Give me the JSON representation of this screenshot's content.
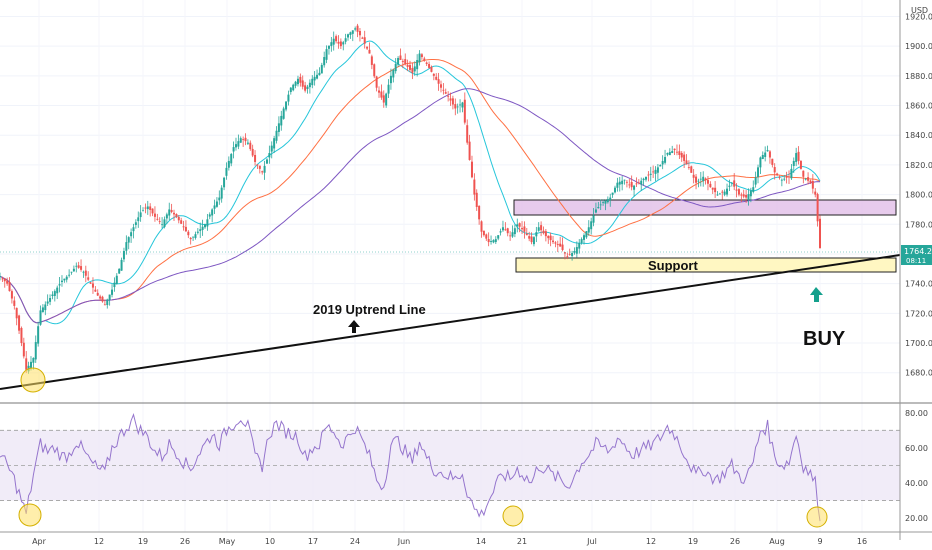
{
  "chart_data": {
    "type": "candlestick",
    "currency": "USD",
    "price_axis": {
      "ticks": [
        1680,
        1700,
        1720,
        1740,
        1760,
        1780,
        1800,
        1820,
        1840,
        1860,
        1880,
        1900,
        1920
      ],
      "ylim": [
        1665,
        1923
      ]
    },
    "rsi_axis": {
      "ticks": [
        20,
        40,
        60,
        80
      ],
      "ylim": [
        12,
        85
      ],
      "band": [
        30,
        70
      ]
    },
    "time_axis": {
      "labels": [
        "Apr",
        "12",
        "19",
        "26",
        "May",
        "10",
        "17",
        "24",
        "Jun",
        "14",
        "21",
        "Jul",
        "12",
        "19",
        "26",
        "Aug",
        "9",
        "16"
      ]
    },
    "current_price": {
      "value": "1764.21",
      "countdown": "08:11"
    },
    "annotations": {
      "uptrend_label": "2019 Uptrend Line",
      "support_label": "Support",
      "buy_label": "BUY"
    },
    "price_path": [
      [
        0,
        1745
      ],
      [
        3,
        1740
      ],
      [
        6,
        1725
      ],
      [
        9,
        1700
      ],
      [
        11,
        1682
      ],
      [
        14,
        1690
      ],
      [
        17,
        1722
      ],
      [
        20,
        1728
      ],
      [
        23,
        1735
      ],
      [
        26,
        1742
      ],
      [
        29,
        1746
      ],
      [
        32,
        1752
      ],
      [
        35,
        1748
      ],
      [
        38,
        1740
      ],
      [
        41,
        1732
      ],
      [
        44,
        1726
      ],
      [
        47,
        1736
      ],
      [
        50,
        1750
      ],
      [
        53,
        1768
      ],
      [
        56,
        1778
      ],
      [
        59,
        1788
      ],
      [
        62,
        1792
      ],
      [
        65,
        1785
      ],
      [
        68,
        1780
      ],
      [
        71,
        1790
      ],
      [
        74,
        1785
      ],
      [
        77,
        1778
      ],
      [
        80,
        1770
      ],
      [
        83,
        1775
      ],
      [
        86,
        1780
      ],
      [
        89,
        1790
      ],
      [
        92,
        1798
      ],
      [
        95,
        1818
      ],
      [
        98,
        1832
      ],
      [
        101,
        1838
      ],
      [
        104,
        1835
      ],
      [
        107,
        1822
      ],
      [
        110,
        1815
      ],
      [
        113,
        1828
      ],
      [
        116,
        1843
      ],
      [
        119,
        1858
      ],
      [
        122,
        1872
      ],
      [
        125,
        1878
      ],
      [
        128,
        1870
      ],
      [
        131,
        1878
      ],
      [
        134,
        1882
      ],
      [
        137,
        1898
      ],
      [
        140,
        1905
      ],
      [
        143,
        1900
      ],
      [
        146,
        1908
      ],
      [
        149,
        1912
      ],
      [
        152,
        1905
      ],
      [
        155,
        1895
      ],
      [
        158,
        1872
      ],
      [
        161,
        1862
      ],
      [
        164,
        1880
      ],
      [
        167,
        1892
      ],
      [
        170,
        1888
      ],
      [
        173,
        1882
      ],
      [
        176,
        1895
      ],
      [
        179,
        1888
      ],
      [
        182,
        1880
      ],
      [
        185,
        1872
      ],
      [
        188,
        1866
      ],
      [
        191,
        1858
      ],
      [
        194,
        1862
      ],
      [
        196,
        1835
      ],
      [
        199,
        1800
      ],
      [
        202,
        1775
      ],
      [
        205,
        1768
      ],
      [
        208,
        1770
      ],
      [
        211,
        1778
      ],
      [
        214,
        1772
      ],
      [
        217,
        1780
      ],
      [
        220,
        1775
      ],
      [
        223,
        1768
      ],
      [
        226,
        1778
      ],
      [
        229,
        1772
      ],
      [
        232,
        1768
      ],
      [
        235,
        1765
      ],
      [
        238,
        1758
      ],
      [
        241,
        1762
      ],
      [
        244,
        1770
      ],
      [
        247,
        1778
      ],
      [
        250,
        1790
      ],
      [
        253,
        1795
      ],
      [
        256,
        1798
      ],
      [
        259,
        1808
      ],
      [
        262,
        1810
      ],
      [
        265,
        1805
      ],
      [
        268,
        1808
      ],
      [
        271,
        1812
      ],
      [
        274,
        1815
      ],
      [
        277,
        1820
      ],
      [
        280,
        1828
      ],
      [
        283,
        1830
      ],
      [
        286,
        1825
      ],
      [
        289,
        1818
      ],
      [
        292,
        1808
      ],
      [
        295,
        1812
      ],
      [
        298,
        1805
      ],
      [
        301,
        1800
      ],
      [
        304,
        1802
      ],
      [
        307,
        1808
      ],
      [
        310,
        1800
      ],
      [
        313,
        1798
      ],
      [
        316,
        1805
      ],
      [
        319,
        1825
      ],
      [
        322,
        1830
      ],
      [
        325,
        1815
      ],
      [
        328,
        1810
      ],
      [
        331,
        1812
      ],
      [
        334,
        1828
      ],
      [
        337,
        1812
      ],
      [
        340,
        1808
      ],
      [
        342,
        1800
      ],
      [
        344,
        1764
      ]
    ],
    "rsi_path": [
      [
        0,
        55
      ],
      [
        3,
        50
      ],
      [
        6,
        42
      ],
      [
        9,
        30
      ],
      [
        11,
        22
      ],
      [
        14,
        45
      ],
      [
        17,
        62
      ],
      [
        20,
        58
      ],
      [
        23,
        60
      ],
      [
        26,
        55
      ],
      [
        29,
        56
      ],
      [
        32,
        64
      ],
      [
        35,
        58
      ],
      [
        38,
        52
      ],
      [
        41,
        48
      ],
      [
        44,
        46
      ],
      [
        47,
        60
      ],
      [
        50,
        66
      ],
      [
        53,
        72
      ],
      [
        56,
        76
      ],
      [
        59,
        70
      ],
      [
        62,
        66
      ],
      [
        65,
        58
      ],
      [
        68,
        55
      ],
      [
        71,
        62
      ],
      [
        74,
        58
      ],
      [
        77,
        52
      ],
      [
        80,
        48
      ],
      [
        83,
        56
      ],
      [
        86,
        62
      ],
      [
        89,
        68
      ],
      [
        92,
        62
      ],
      [
        95,
        70
      ],
      [
        98,
        74
      ],
      [
        101,
        78
      ],
      [
        104,
        72
      ],
      [
        107,
        55
      ],
      [
        110,
        50
      ],
      [
        113,
        68
      ],
      [
        116,
        74
      ],
      [
        119,
        70
      ],
      [
        122,
        68
      ],
      [
        125,
        66
      ],
      [
        128,
        55
      ],
      [
        131,
        60
      ],
      [
        134,
        62
      ],
      [
        137,
        72
      ],
      [
        140,
        70
      ],
      [
        143,
        62
      ],
      [
        146,
        66
      ],
      [
        149,
        72
      ],
      [
        152,
        64
      ],
      [
        155,
        55
      ],
      [
        158,
        42
      ],
      [
        161,
        38
      ],
      [
        164,
        62
      ],
      [
        167,
        64
      ],
      [
        170,
        58
      ],
      [
        173,
        52
      ],
      [
        176,
        64
      ],
      [
        179,
        54
      ],
      [
        182,
        48
      ],
      [
        185,
        46
      ],
      [
        188,
        44
      ],
      [
        191,
        42
      ],
      [
        194,
        46
      ],
      [
        196,
        35
      ],
      [
        199,
        25
      ],
      [
        202,
        22
      ],
      [
        205,
        30
      ],
      [
        208,
        38
      ],
      [
        211,
        45
      ],
      [
        214,
        42
      ],
      [
        217,
        48
      ],
      [
        220,
        44
      ],
      [
        223,
        40
      ],
      [
        226,
        50
      ],
      [
        229,
        48
      ],
      [
        232,
        44
      ],
      [
        235,
        42
      ],
      [
        238,
        38
      ],
      [
        241,
        44
      ],
      [
        244,
        52
      ],
      [
        247,
        56
      ],
      [
        250,
        62
      ],
      [
        253,
        60
      ],
      [
        256,
        58
      ],
      [
        259,
        66
      ],
      [
        262,
        62
      ],
      [
        265,
        56
      ],
      [
        268,
        58
      ],
      [
        271,
        60
      ],
      [
        274,
        62
      ],
      [
        277,
        66
      ],
      [
        280,
        72
      ],
      [
        283,
        68
      ],
      [
        286,
        60
      ],
      [
        289,
        52
      ],
      [
        292,
        44
      ],
      [
        295,
        48
      ],
      [
        298,
        44
      ],
      [
        301,
        42
      ],
      [
        304,
        46
      ],
      [
        307,
        50
      ],
      [
        310,
        44
      ],
      [
        313,
        42
      ],
      [
        316,
        52
      ],
      [
        319,
        70
      ],
      [
        322,
        72
      ],
      [
        325,
        55
      ],
      [
        328,
        50
      ],
      [
        331,
        52
      ],
      [
        334,
        68
      ],
      [
        337,
        50
      ],
      [
        340,
        45
      ],
      [
        342,
        40
      ],
      [
        344,
        22
      ]
    ]
  }
}
